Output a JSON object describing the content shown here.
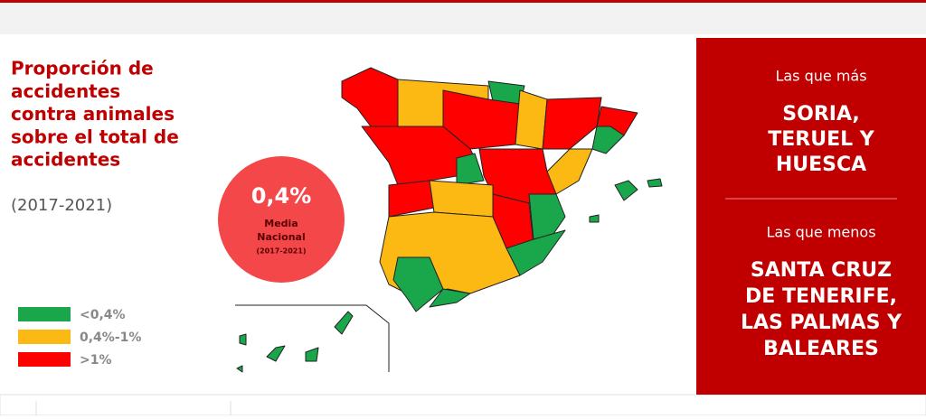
{
  "infographic": {
    "title_lines": [
      "Proporción de",
      "accidentes",
      "contra animales",
      "sobre el total de",
      "accidentes"
    ],
    "period": "(2017-2021)",
    "national": {
      "value_label": "0,4%",
      "caption_lines": [
        "Media",
        "Nacional"
      ],
      "period": "(2017-2021)"
    },
    "legend": [
      {
        "label": "<0,4%",
        "color": "#1aa64a"
      },
      {
        "label": "0,4%-1%",
        "color": "#fdb913"
      },
      {
        "label": ">1%",
        "color": "#ff0000"
      }
    ],
    "panel": {
      "most_heading": "Las que más",
      "most_lines": [
        "SORIA,",
        "TERUEL Y",
        "HUESCA"
      ],
      "least_heading": "Las que menos",
      "least_lines": [
        "SANTA CRUZ",
        "DE TENERIFE,",
        "LAS PALMAS Y",
        "BALEARES"
      ]
    }
  }
}
